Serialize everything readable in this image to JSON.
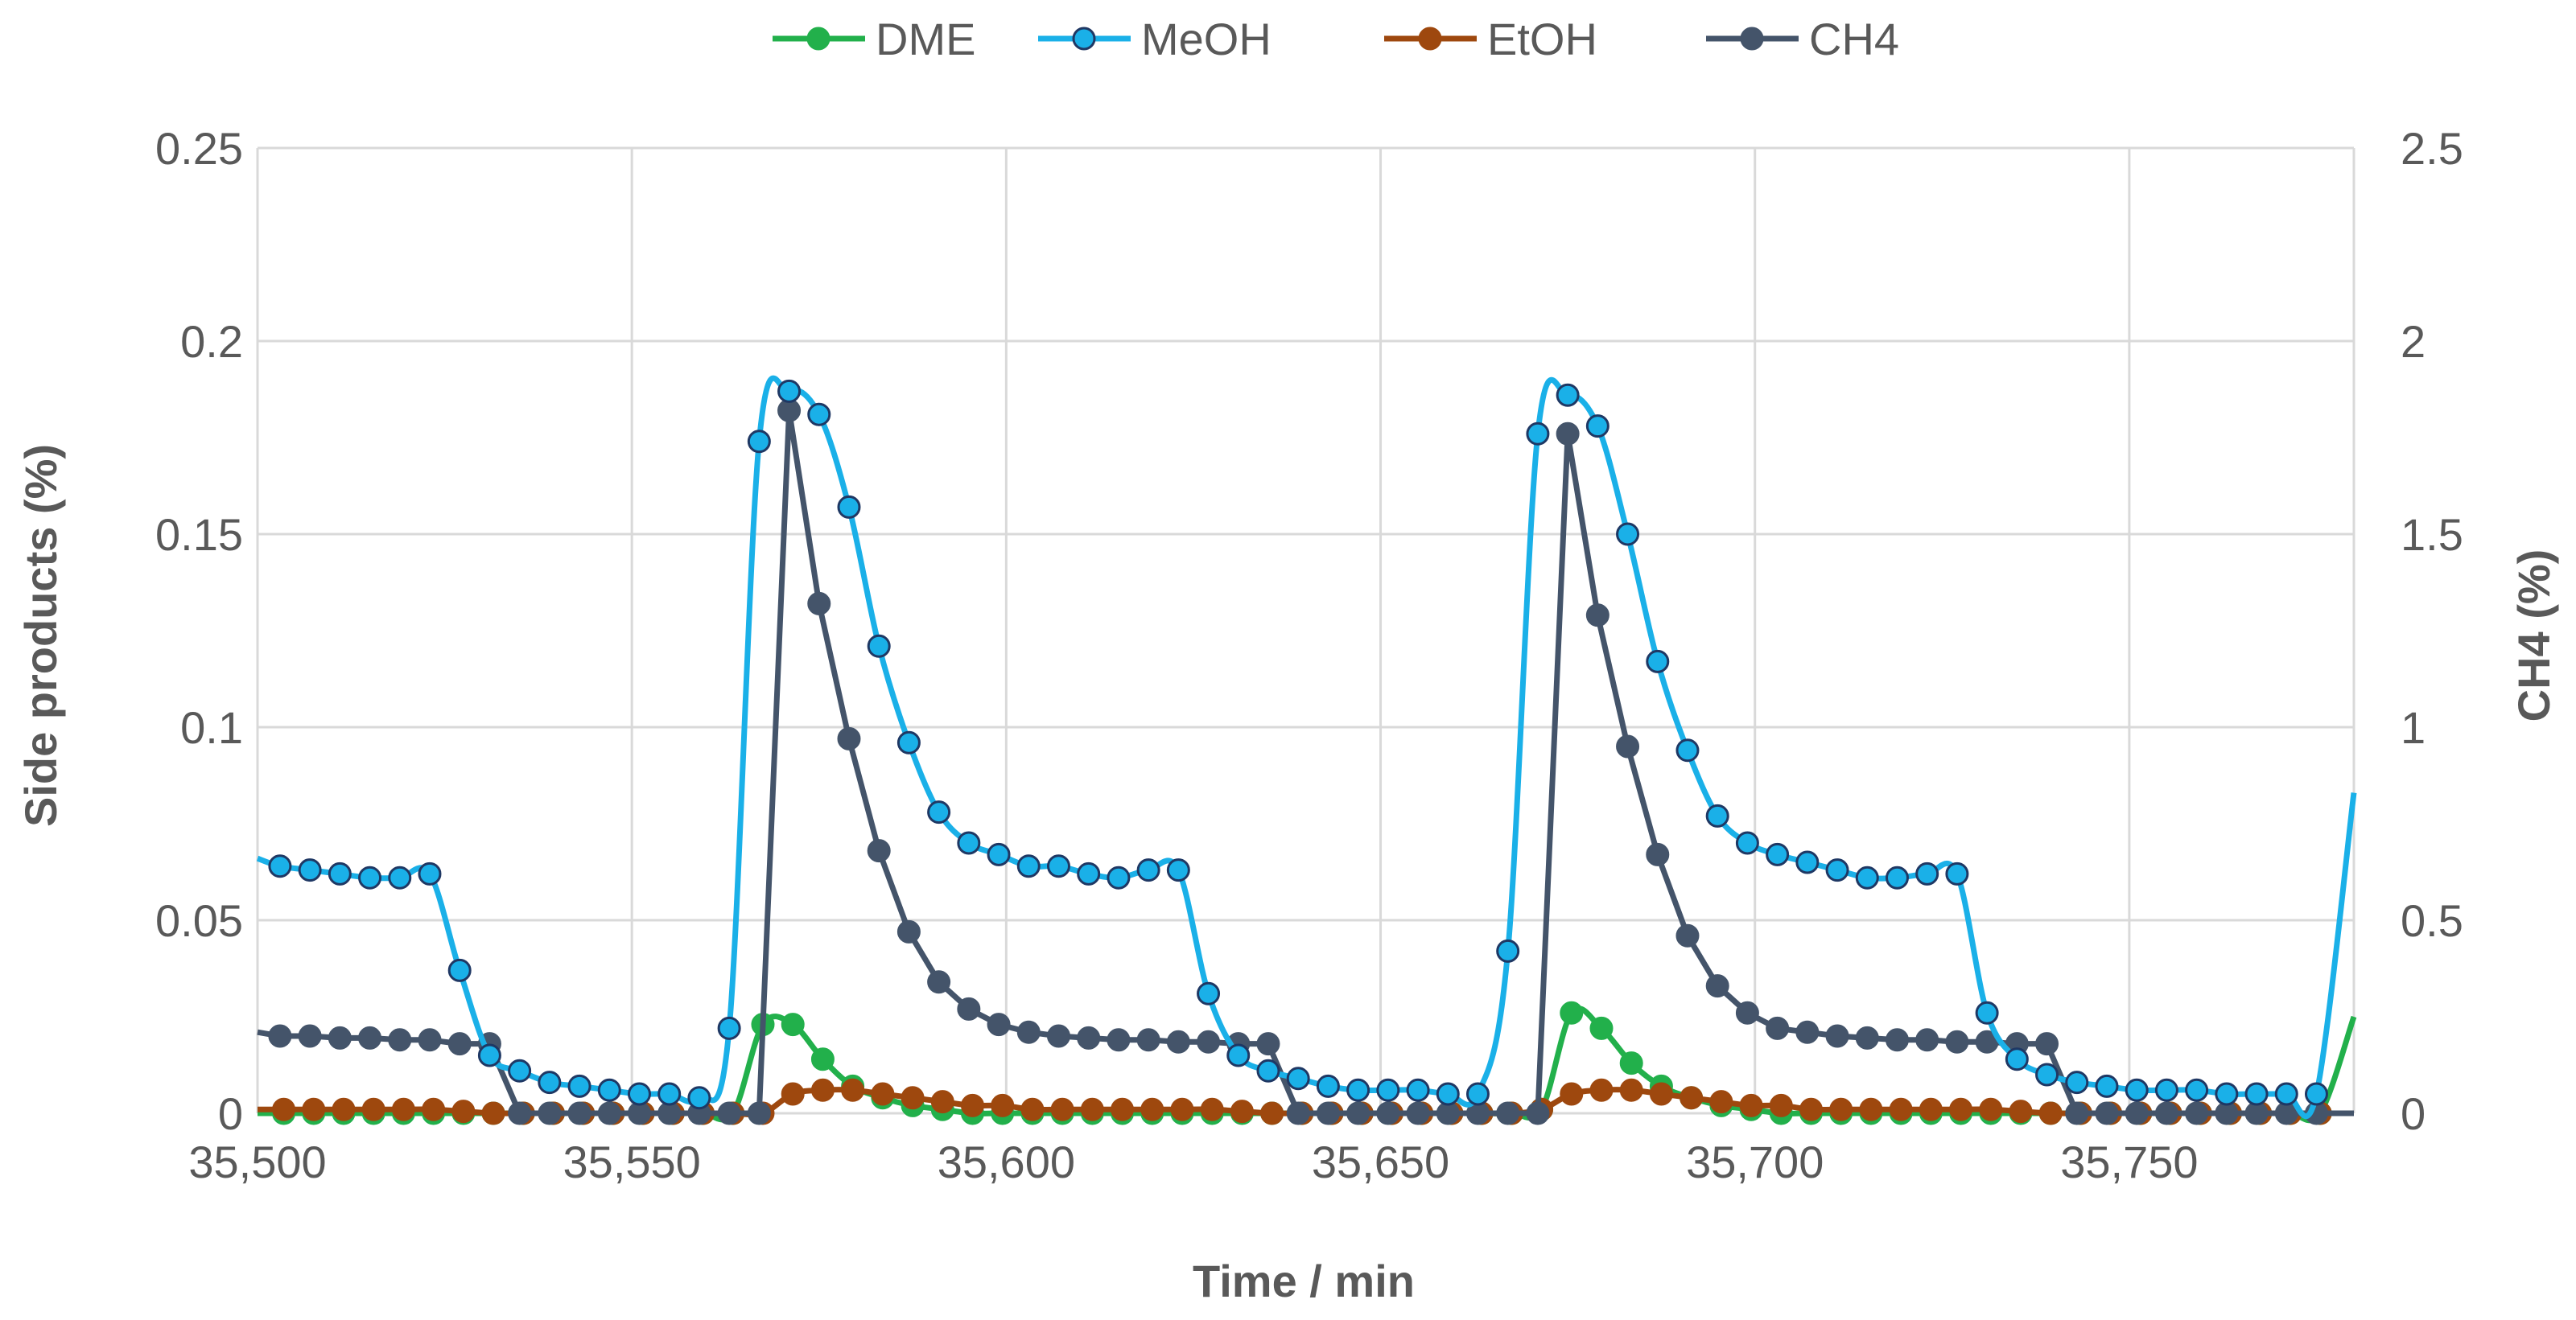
{
  "chart_data": {
    "type": "line",
    "xlabel": "Time / min",
    "ylabel": "Side products (%)",
    "y2label": "CH4 (%)",
    "xlim": [
      35500,
      35780
    ],
    "ylim": [
      0,
      0.25
    ],
    "y2lim": [
      0,
      2.5
    ],
    "grid": true,
    "legend_position": "top",
    "x_ticks": [
      35500,
      35550,
      35600,
      35650,
      35700,
      35750
    ],
    "x_tick_labels": [
      "35,500",
      "35,550",
      "35,600",
      "35,650",
      "35,700",
      "35,750"
    ],
    "y_ticks": [
      0,
      0.05,
      0.1,
      0.15,
      0.2,
      0.25
    ],
    "y_tick_labels": [
      "0",
      "0.05",
      "0.1",
      "0.15",
      "0.2",
      "0.25"
    ],
    "y2_ticks": [
      0,
      0.5,
      1,
      1.5,
      2,
      2.5
    ],
    "y2_tick_labels": [
      "0",
      "0.5",
      "1",
      "1.5",
      "2",
      "2.5"
    ],
    "series": [
      {
        "name": "DME",
        "color": "#22b04b",
        "axis": "left",
        "x": [
          35500,
          35503.5,
          35507.5,
          35511.5,
          35515.5,
          35519.5,
          35523.5,
          35527.5,
          35531.5,
          35535.5,
          35539.5,
          35543.5,
          35547.5,
          35551.5,
          35555.5,
          35559.5,
          35563.5,
          35567.5,
          35571.5,
          35575.5,
          35579.5,
          35583.5,
          35587.5,
          35591.5,
          35595.5,
          35599.5,
          35603.5,
          35607.5,
          35611.5,
          35615.5,
          35619.5,
          35623.5,
          35627.5,
          35631.5,
          35635.5,
          35639.5,
          35643.5,
          35647.5,
          35651.5,
          35655.5,
          35659.5,
          35663.5,
          35667.5,
          35671.5,
          35675.5,
          35679.5,
          35683.5,
          35687.5,
          35691.5,
          35695.5,
          35699.5,
          35703.5,
          35707.5,
          35711.5,
          35715.5,
          35719.5,
          35723.5,
          35727.5,
          35731.5,
          35735.5,
          35739.5,
          35743.5,
          35747.5,
          35751.5,
          35755.5,
          35759.5,
          35763.5,
          35767.5,
          35771.5,
          35775.5,
          35780
        ],
        "y": [
          0,
          0,
          0,
          0,
          0,
          0,
          0,
          0,
          0,
          0,
          0,
          0,
          0,
          0,
          0,
          0,
          0,
          0.023,
          0.023,
          0.014,
          0.007,
          0.004,
          0.002,
          0.001,
          0,
          0,
          0,
          0,
          0,
          0,
          0,
          0,
          0,
          0,
          0,
          0,
          0,
          0,
          0,
          0,
          0,
          0,
          0,
          0.001,
          0.026,
          0.022,
          0.013,
          0.007,
          0.004,
          0.002,
          0.001,
          0,
          0,
          0,
          0,
          0,
          0,
          0,
          0,
          0,
          0,
          0,
          0,
          0,
          0,
          0,
          0,
          0,
          0,
          0,
          0.025
        ]
      },
      {
        "name": "MeOH",
        "color": "#1ab0e8",
        "axis": "left",
        "x": [
          35500,
          35503,
          35507,
          35511,
          35515,
          35519,
          35523,
          35527,
          35531,
          35535,
          35539,
          35543,
          35547,
          35551,
          35555,
          35559,
          35563,
          35567,
          35571,
          35575,
          35579,
          35583,
          35587,
          35591,
          35595,
          35599,
          35603,
          35607,
          35611,
          35615,
          35619,
          35623,
          35627,
          35631,
          35635,
          35639,
          35643,
          35647,
          35651,
          35655,
          35659,
          35663,
          35667,
          35671,
          35675,
          35679,
          35683,
          35687,
          35691,
          35695,
          35699,
          35703,
          35707,
          35711,
          35715,
          35719,
          35723,
          35727,
          35731,
          35735,
          35739,
          35743,
          35747,
          35751,
          35755,
          35759,
          35763,
          35767,
          35771,
          35775,
          35780
        ],
        "y": [
          0.066,
          0.064,
          0.063,
          0.062,
          0.061,
          0.061,
          0.062,
          0.037,
          0.015,
          0.011,
          0.008,
          0.007,
          0.006,
          0.005,
          0.005,
          0.004,
          0.022,
          0.174,
          0.187,
          0.181,
          0.157,
          0.121,
          0.096,
          0.078,
          0.07,
          0.067,
          0.064,
          0.064,
          0.062,
          0.061,
          0.063,
          0.063,
          0.031,
          0.015,
          0.011,
          0.009,
          0.007,
          0.006,
          0.006,
          0.006,
          0.005,
          0.005,
          0.042,
          0.176,
          0.186,
          0.178,
          0.15,
          0.117,
          0.094,
          0.077,
          0.07,
          0.067,
          0.065,
          0.063,
          0.061,
          0.061,
          0.062,
          0.062,
          0.026,
          0.014,
          0.01,
          0.008,
          0.007,
          0.006,
          0.006,
          0.006,
          0.005,
          0.005,
          0.005,
          0.005,
          0.083
        ]
      },
      {
        "name": "EtOH",
        "color": "#9e480e",
        "axis": "left",
        "x": [
          35500,
          35503.5,
          35507.5,
          35511.5,
          35515.5,
          35519.5,
          35523.5,
          35527.5,
          35531.5,
          35535.5,
          35539.5,
          35543.5,
          35547.5,
          35551.5,
          35555.5,
          35559.5,
          35563.5,
          35567.5,
          35571.5,
          35575.5,
          35579.5,
          35583.5,
          35587.5,
          35591.5,
          35595.5,
          35599.5,
          35603.5,
          35607.5,
          35611.5,
          35615.5,
          35619.5,
          35623.5,
          35627.5,
          35631.5,
          35635.5,
          35639.5,
          35643.5,
          35647.5,
          35651.5,
          35655.5,
          35659.5,
          35663.5,
          35667.5,
          35671.5,
          35675.5,
          35679.5,
          35683.5,
          35687.5,
          35691.5,
          35695.5,
          35699.5,
          35703.5,
          35707.5,
          35711.5,
          35715.5,
          35719.5,
          35723.5,
          35727.5,
          35731.5,
          35735.5,
          35739.5,
          35743.5,
          35747.5,
          35751.5,
          35755.5,
          35759.5,
          35763.5,
          35767.5,
          35771.5,
          35775.5,
          35780
        ],
        "y": [
          0.001,
          0.001,
          0.001,
          0.001,
          0.001,
          0.001,
          0.001,
          0.0005,
          0,
          0,
          0,
          0,
          0,
          0,
          0,
          0,
          0,
          0,
          0.005,
          0.006,
          0.006,
          0.005,
          0.004,
          0.003,
          0.002,
          0.002,
          0.001,
          0.001,
          0.001,
          0.001,
          0.001,
          0.001,
          0.001,
          0.0005,
          0,
          0,
          0,
          0,
          0,
          0,
          0,
          0,
          0,
          0.001,
          0.005,
          0.006,
          0.006,
          0.005,
          0.004,
          0.003,
          0.002,
          0.002,
          0.001,
          0.001,
          0.001,
          0.001,
          0.001,
          0.001,
          0.001,
          0.0005,
          0,
          0,
          0,
          0,
          0,
          0,
          0,
          0,
          0,
          0,
          0
        ]
      },
      {
        "name": "CH4",
        "color": "#44546a",
        "axis": "right",
        "x": [
          35500,
          35503,
          35507,
          35511,
          35515,
          35519,
          35523,
          35527,
          35531,
          35535,
          35539,
          35543,
          35547,
          35551,
          35555,
          35559,
          35563,
          35567,
          35571,
          35575,
          35579,
          35583,
          35587,
          35591,
          35595,
          35599,
          35603,
          35607,
          35611,
          35615,
          35619,
          35623,
          35627,
          35631,
          35635,
          35639,
          35643,
          35647,
          35651,
          35655,
          35659,
          35663,
          35667,
          35671,
          35675,
          35679,
          35683,
          35687,
          35691,
          35695,
          35699,
          35703,
          35707,
          35711,
          35715,
          35719,
          35723,
          35727,
          35731,
          35735,
          35739,
          35743,
          35747,
          35751,
          35755,
          35759,
          35763,
          35767,
          35771,
          35775,
          35780
        ],
        "y": [
          0.21,
          0.2,
          0.2,
          0.195,
          0.195,
          0.19,
          0.19,
          0.18,
          0.18,
          0,
          0,
          0,
          0,
          0,
          0,
          0,
          0,
          0,
          1.82,
          1.32,
          0.97,
          0.68,
          0.47,
          0.34,
          0.27,
          0.23,
          0.21,
          0.2,
          0.195,
          0.19,
          0.19,
          0.185,
          0.185,
          0.18,
          0.18,
          0,
          0,
          0,
          0,
          0,
          0,
          0,
          0,
          0,
          1.76,
          1.29,
          0.95,
          0.67,
          0.46,
          0.33,
          0.26,
          0.22,
          0.21,
          0.2,
          0.195,
          0.19,
          0.19,
          0.185,
          0.185,
          0.18,
          0.18,
          0,
          0,
          0,
          0,
          0,
          0,
          0,
          0,
          0,
          0
        ]
      }
    ]
  }
}
